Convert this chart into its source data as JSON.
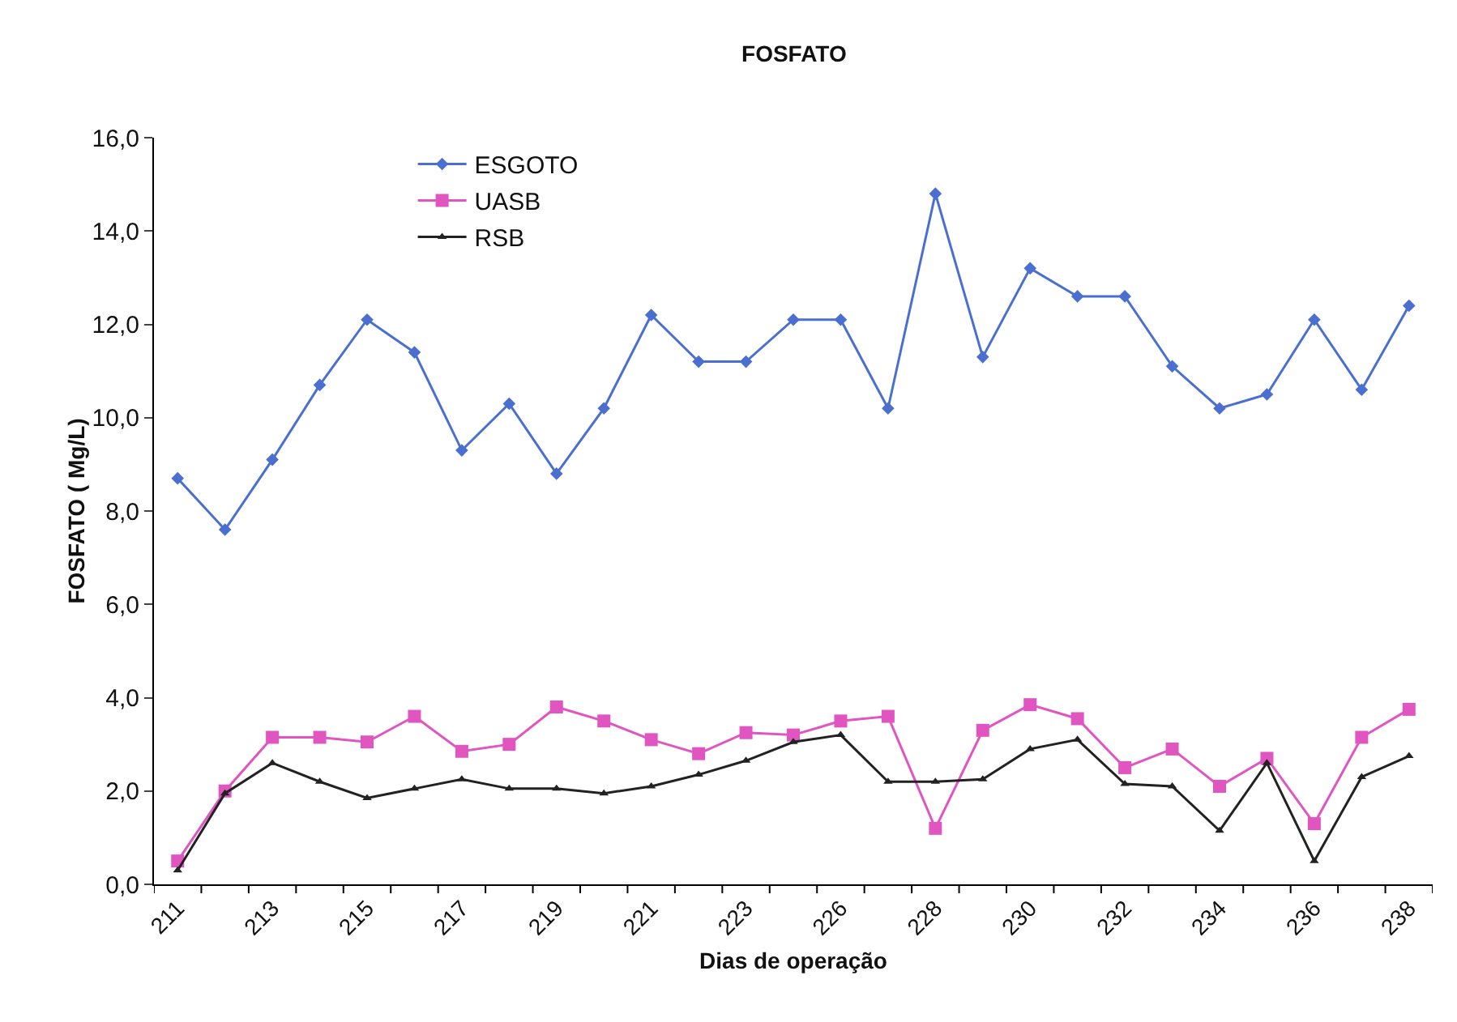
{
  "chart_data": {
    "type": "line",
    "title": "FOSFATO",
    "xlabel": "Dias de operação",
    "ylabel": "FOSFATO ( Mg/L)",
    "categories": [
      "211",
      null,
      "213",
      null,
      "215",
      null,
      "217",
      null,
      "219",
      null,
      "221",
      null,
      "223",
      null,
      "226",
      null,
      "228",
      null,
      "230",
      null,
      "232",
      null,
      "234",
      null,
      "236",
      null,
      "238"
    ],
    "series": [
      {
        "name": "ESGOTO",
        "color": "#4a6fd0",
        "marker": "diamond",
        "values": [
          8.7,
          7.6,
          9.1,
          10.7,
          12.1,
          11.4,
          9.3,
          10.3,
          8.8,
          10.2,
          12.2,
          11.2,
          11.2,
          12.1,
          12.1,
          10.2,
          14.8,
          11.3,
          13.2,
          12.6,
          12.6,
          11.1,
          10.2,
          10.5,
          12.1,
          10.6,
          12.4
        ]
      },
      {
        "name": "UASB",
        "color": "#e055c0",
        "marker": "square",
        "values": [
          0.5,
          2.0,
          3.15,
          3.15,
          3.05,
          3.6,
          2.85,
          3.0,
          3.8,
          3.5,
          3.1,
          2.8,
          3.25,
          3.2,
          3.5,
          3.6,
          1.2,
          3.3,
          3.85,
          3.55,
          2.5,
          2.9,
          2.1,
          2.7,
          1.3,
          3.15,
          3.75
        ]
      },
      {
        "name": "RSB",
        "color": "#222222",
        "marker": "triangle",
        "values": [
          0.3,
          1.95,
          2.6,
          2.2,
          1.85,
          2.05,
          2.25,
          2.05,
          2.05,
          1.95,
          2.1,
          2.35,
          2.65,
          3.05,
          3.2,
          2.2,
          2.2,
          2.25,
          2.9,
          3.1,
          2.15,
          2.1,
          1.15,
          2.6,
          0.5,
          2.3,
          2.75
        ]
      }
    ],
    "ylim": [
      0,
      16
    ],
    "yticks": [
      {
        "value": 0,
        "label": "0,0"
      },
      {
        "value": 2,
        "label": "2,0"
      },
      {
        "value": 4,
        "label": "4,0"
      },
      {
        "value": 6,
        "label": "6,0"
      },
      {
        "value": 8,
        "label": "8,0"
      },
      {
        "value": 10,
        "label": "10,0"
      },
      {
        "value": 12,
        "label": "12,0"
      },
      {
        "value": 14,
        "label": "14,0"
      },
      {
        "value": 16,
        "label": "16,0"
      }
    ],
    "grid": false,
    "legend": "top left",
    "line_style": "solid"
  }
}
